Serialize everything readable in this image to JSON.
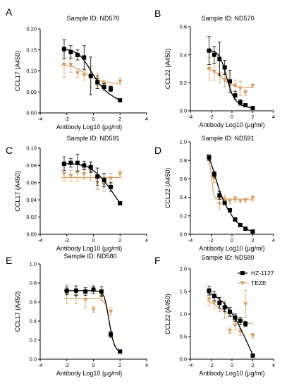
{
  "colors": {
    "hz": "#000000",
    "teze": "#D9A066"
  },
  "legend": {
    "items": [
      {
        "label": "HZ-1127",
        "color": "#000000",
        "marker": "square"
      },
      {
        "label": "TEZE",
        "color": "#D9A066",
        "marker": "triangle-down"
      }
    ]
  },
  "chart_data": [
    {
      "letter": "A",
      "title": "Sample ID: ND570",
      "type": "scatter",
      "xlabel": "Antibody Log10 (μg/ml)",
      "ylabel": "CCL17 (A450)",
      "xlim": [
        -4,
        4
      ],
      "ylim": [
        0,
        0.2
      ],
      "xticks": [
        -4,
        -2,
        0,
        2,
        4
      ],
      "yticks": [
        0.0,
        0.05,
        0.1,
        0.15,
        0.2
      ],
      "xtick_labels": [
        "-4",
        "-2",
        "0",
        "2",
        "4"
      ],
      "ytick_labels": [
        "0.00",
        "0.05",
        "0.10",
        "0.15",
        "0.20"
      ],
      "series": [
        {
          "color": "#000000",
          "marker": "square",
          "x": [
            -2.2,
            -1.7,
            -1.2,
            -0.7,
            -0.2,
            0.3,
            0.8,
            1.3,
            2.0
          ],
          "y": [
            0.152,
            0.145,
            0.138,
            0.132,
            0.088,
            0.073,
            0.062,
            0.057,
            0.03
          ],
          "err": [
            0.022,
            0.015,
            0.012,
            0.028,
            0.045,
            0.015,
            0.008,
            0.006,
            0.003
          ],
          "fit_x": [
            -2.4,
            -1.8,
            -1.2,
            -0.8,
            -0.4,
            0.0,
            0.4,
            0.8,
            1.2,
            1.6,
            2.0
          ],
          "fit_y": [
            0.152,
            0.15,
            0.142,
            0.13,
            0.111,
            0.09,
            0.071,
            0.056,
            0.045,
            0.037,
            0.03
          ]
        },
        {
          "color": "#D9A066",
          "marker": "triangle-down",
          "x": [
            -2.2,
            -1.7,
            -1.2,
            -0.7,
            -0.2,
            0.3,
            0.8,
            1.3,
            2.0
          ],
          "y": [
            0.115,
            0.115,
            0.095,
            0.09,
            0.085,
            0.08,
            0.07,
            0.06,
            0.075
          ],
          "err": [
            0.03,
            0.018,
            0.01,
            0.012,
            0.025,
            0.015,
            0.008,
            0.006,
            0.008
          ],
          "fit_x": [
            -2.4,
            -1.5,
            -1.0,
            -0.5,
            0.0,
            0.5,
            1.0,
            1.5,
            2.0
          ],
          "fit_y": [
            0.115,
            0.11,
            0.102,
            0.092,
            0.083,
            0.077,
            0.073,
            0.071,
            0.07
          ]
        }
      ]
    },
    {
      "letter": "B",
      "title": "Sample ID: ND570",
      "type": "scatter",
      "xlabel": "Antibody Log10 (μg/ml)",
      "ylabel": "CCL22 (A450)",
      "xlim": [
        -4,
        4
      ],
      "ylim": [
        0,
        0.6
      ],
      "xticks": [
        -4,
        -2,
        0,
        2,
        4
      ],
      "yticks": [
        0.0,
        0.2,
        0.4,
        0.6
      ],
      "xtick_labels": [
        "-4",
        "-2",
        "0",
        "2",
        "4"
      ],
      "ytick_labels": [
        "0.0",
        "0.2",
        "0.4",
        "0.6"
      ],
      "series": [
        {
          "color": "#000000",
          "marker": "square",
          "x": [
            -2.2,
            -1.7,
            -1.2,
            -0.7,
            -0.2,
            0.3,
            0.8,
            1.3,
            2.0
          ],
          "y": [
            0.43,
            0.4,
            0.37,
            0.31,
            0.21,
            0.11,
            0.06,
            0.04,
            0.02
          ],
          "err": [
            0.1,
            0.06,
            0.12,
            0.05,
            0.08,
            0.03,
            0.02,
            0.01,
            0.01
          ],
          "fit_x": [
            -2.4,
            -2.0,
            -1.6,
            -1.2,
            -0.8,
            -0.4,
            0.0,
            0.4,
            0.8,
            1.2,
            1.6,
            2.0
          ],
          "fit_y": [
            0.43,
            0.43,
            0.42,
            0.39,
            0.32,
            0.21,
            0.12,
            0.07,
            0.045,
            0.032,
            0.025,
            0.02
          ]
        },
        {
          "color": "#D9A066",
          "marker": "triangle-down",
          "x": [
            -2.2,
            -1.7,
            -1.2,
            -0.7,
            -0.2,
            0.3,
            0.8,
            1.3,
            2.0
          ],
          "y": [
            0.3,
            0.28,
            0.26,
            0.22,
            0.21,
            0.18,
            0.16,
            0.13,
            0.18
          ],
          "err": [
            0.08,
            0.06,
            0.06,
            0.05,
            0.06,
            0.04,
            0.05,
            0.02,
            0.01
          ],
          "fit_x": [
            -2.4,
            -2.0,
            -1.5,
            -1.0,
            -0.5,
            0.0,
            0.5,
            1.0,
            1.5,
            2.0
          ],
          "fit_y": [
            0.3,
            0.29,
            0.27,
            0.24,
            0.205,
            0.182,
            0.172,
            0.168,
            0.166,
            0.165
          ]
        }
      ]
    },
    {
      "letter": "C",
      "title": "Sample ID: ND591",
      "type": "scatter",
      "xlabel": "Antibody Log10 (μg/ml)",
      "ylabel": "CCL17 (A450)",
      "xlim": [
        -4,
        4
      ],
      "ylim": [
        0,
        0.1
      ],
      "xticks": [
        -4,
        -2,
        0,
        2,
        4
      ],
      "yticks": [
        0.0,
        0.02,
        0.04,
        0.06,
        0.08,
        0.1
      ],
      "xtick_labels": [
        "-4",
        "-2",
        "0",
        "2",
        "4"
      ],
      "ytick_labels": [
        "0.00",
        "0.02",
        "0.04",
        "0.06",
        "0.08",
        "0.10"
      ],
      "series": [
        {
          "color": "#000000",
          "marker": "square",
          "x": [
            -2.2,
            -1.7,
            -1.2,
            -0.7,
            -0.2,
            0.3,
            0.8,
            1.3,
            2.0
          ],
          "y": [
            0.082,
            0.083,
            0.083,
            0.08,
            0.078,
            0.067,
            0.063,
            0.055,
            0.036
          ],
          "err": [
            0.008,
            0.005,
            0.01,
            0.005,
            0.006,
            0.01,
            0.008,
            0.005,
            0.002
          ],
          "fit_x": [
            -2.4,
            -1.6,
            -0.8,
            -0.4,
            0.0,
            0.4,
            0.8,
            1.2,
            1.6,
            2.0
          ],
          "fit_y": [
            0.082,
            0.082,
            0.08,
            0.078,
            0.074,
            0.069,
            0.062,
            0.054,
            0.045,
            0.036
          ]
        },
        {
          "color": "#D9A066",
          "marker": "triangle-down",
          "x": [
            -2.2,
            -1.7,
            -1.2,
            -0.7,
            -0.2,
            0.3,
            0.8,
            1.3,
            2.0
          ],
          "y": [
            0.07,
            0.068,
            0.072,
            0.07,
            0.073,
            0.06,
            0.058,
            0.065,
            0.07
          ],
          "err": [
            0.008,
            0.006,
            0.01,
            0.006,
            0.01,
            0.008,
            0.008,
            0.006,
            0.004
          ],
          "fit_x": [
            -2.4,
            2.0
          ],
          "fit_y": [
            0.066,
            0.066
          ]
        }
      ]
    },
    {
      "letter": "D",
      "title": "Sample ID: ND591",
      "type": "scatter",
      "xlabel": "Antibody Log10 (μg/ml)",
      "ylabel": "CCL22 (A450)",
      "xlim": [
        -4,
        4
      ],
      "ylim": [
        0,
        1.0
      ],
      "xticks": [
        -4,
        -2,
        0,
        2,
        4
      ],
      "yticks": [
        0.0,
        0.2,
        0.4,
        0.6,
        0.8,
        1.0
      ],
      "xtick_labels": [
        "-4",
        "-2",
        "0",
        "2",
        "4"
      ],
      "ytick_labels": [
        "0.0",
        "0.2",
        "0.4",
        "0.6",
        "0.8",
        "1.0"
      ],
      "series": [
        {
          "color": "#000000",
          "marker": "square",
          "x": [
            -2.2,
            -1.7,
            -1.2,
            -0.7,
            -0.2,
            0.3,
            0.8,
            1.3,
            2.0
          ],
          "y": [
            0.83,
            0.65,
            0.42,
            0.34,
            0.26,
            0.16,
            0.1,
            0.06,
            0.03
          ],
          "err": [
            0.03,
            0.03,
            0.04,
            0.02,
            0.02,
            0.02,
            0.01,
            0.01,
            0.01
          ],
          "fit_x": [
            -2.4,
            -2.0,
            -1.6,
            -1.2,
            -0.8,
            -0.4,
            0.0,
            0.4,
            0.8,
            1.2,
            1.6,
            2.0
          ],
          "fit_y": [
            0.86,
            0.77,
            0.62,
            0.47,
            0.36,
            0.27,
            0.2,
            0.14,
            0.1,
            0.07,
            0.045,
            0.03
          ]
        },
        {
          "color": "#D9A066",
          "marker": "triangle-down",
          "x": [
            -2.2,
            -1.7,
            -1.2,
            -0.7,
            -0.2,
            0.3,
            0.8,
            1.3,
            2.0
          ],
          "y": [
            0.81,
            0.6,
            0.33,
            0.38,
            0.36,
            0.38,
            0.36,
            0.37,
            0.39
          ],
          "err": [
            0.04,
            0.04,
            0.06,
            0.04,
            0.03,
            0.03,
            0.02,
            0.02,
            0.03
          ],
          "fit_x": [
            -2.4,
            -2.2,
            -2.0,
            -1.8,
            -1.6,
            -1.4,
            -1.0,
            0.0,
            1.0,
            2.0
          ],
          "fit_y": [
            0.84,
            0.8,
            0.65,
            0.45,
            0.39,
            0.38,
            0.375,
            0.375,
            0.375,
            0.375
          ]
        }
      ]
    },
    {
      "letter": "E",
      "title": "Sample ID: ND580",
      "type": "scatter",
      "xlabel": "Antibody Log10 (μg/ml)",
      "ylabel": "CCL17 (A450)",
      "xlim": [
        -4,
        4
      ],
      "ylim": [
        0,
        1.0
      ],
      "xticks": [
        -4,
        -2,
        0,
        2,
        4
      ],
      "yticks": [
        0.0,
        0.2,
        0.4,
        0.6,
        0.8,
        1.0
      ],
      "xtick_labels": [
        "-4",
        "-2",
        "0",
        "2",
        "4"
      ],
      "ytick_labels": [
        "0.0",
        "0.2",
        "0.4",
        "0.6",
        "0.8",
        "1.0"
      ],
      "series": [
        {
          "color": "#000000",
          "marker": "square",
          "x": [
            -2.0,
            -1.3,
            -0.6,
            0.0,
            0.6,
            1.3,
            2.0
          ],
          "y": [
            0.72,
            0.72,
            0.71,
            0.73,
            0.71,
            0.26,
            0.08
          ],
          "err": [
            0.04,
            0.05,
            0.04,
            0.04,
            0.05,
            0.03,
            0.01
          ],
          "fit_x": [
            -2.2,
            -1.0,
            0.0,
            0.5,
            0.8,
            1.0,
            1.2,
            1.4,
            1.6,
            1.8,
            2.0
          ],
          "fit_y": [
            0.72,
            0.72,
            0.72,
            0.71,
            0.66,
            0.55,
            0.38,
            0.23,
            0.14,
            0.1,
            0.08
          ]
        },
        {
          "color": "#D9A066",
          "marker": "triangle-down",
          "x": [
            -2.0,
            -1.3,
            -0.6,
            0.0,
            0.6,
            1.3,
            2.0
          ],
          "y": [
            0.68,
            0.66,
            0.62,
            0.52,
            0.66,
            0.5,
            0.08
          ],
          "err": [
            0.1,
            0.08,
            0.08,
            0.03,
            0.05,
            0.04,
            0.01
          ],
          "fit_x": [
            -2.2,
            -1.0,
            0.0,
            0.6,
            0.9,
            1.1,
            1.3,
            1.5,
            1.7,
            2.0
          ],
          "fit_y": [
            0.64,
            0.64,
            0.64,
            0.63,
            0.58,
            0.47,
            0.32,
            0.19,
            0.12,
            0.08
          ]
        }
      ]
    },
    {
      "letter": "F",
      "title": "Sample ID: ND580",
      "type": "scatter",
      "xlabel": "Antibody Log10 (μg/ml)",
      "ylabel": "CCL22 (A450)",
      "xlim": [
        -4,
        4
      ],
      "ylim": [
        0,
        2.0
      ],
      "xticks": [
        -4,
        -2,
        0,
        2,
        4
      ],
      "yticks": [
        0.0,
        0.5,
        1.0,
        1.5,
        2.0
      ],
      "xtick_labels": [
        "-4",
        "-2",
        "0",
        "2",
        "4"
      ],
      "ytick_labels": [
        "0.0",
        "0.5",
        "1.0",
        "1.5",
        "2.0"
      ],
      "legend": true,
      "series": [
        {
          "name": "HZ-1127",
          "color": "#000000",
          "marker": "square",
          "x": [
            -2.2,
            -1.7,
            -1.2,
            -0.7,
            -0.2,
            0.3,
            0.8,
            1.3,
            2.0
          ],
          "y": [
            1.52,
            1.4,
            1.25,
            1.15,
            1.05,
            0.92,
            0.85,
            0.78,
            0.08
          ],
          "err": [
            0.1,
            0.1,
            0.12,
            0.1,
            0.1,
            0.08,
            0.08,
            0.06,
            0.02
          ],
          "fit_x": [
            -2.4,
            -1.6,
            -0.8,
            0.0,
            0.6,
            1.2,
            1.6,
            2.0
          ],
          "fit_y": [
            1.48,
            1.4,
            1.25,
            1.02,
            0.78,
            0.5,
            0.3,
            0.1
          ]
        },
        {
          "name": "TEZE",
          "color": "#D9A066",
          "marker": "triangle-down",
          "x": [
            -2.2,
            -1.7,
            -1.2,
            -0.7,
            -0.2,
            0.3,
            0.8,
            1.3,
            2.0
          ],
          "y": [
            1.33,
            1.25,
            1.2,
            1.1,
            0.63,
            0.75,
            0.6,
            1.22,
            0.52
          ],
          "err": [
            0.15,
            0.12,
            0.15,
            0.2,
            0.06,
            0.1,
            0.08,
            0.3,
            0.05
          ],
          "fit_x": [
            -2.4,
            -1.6,
            -0.8,
            0.0,
            0.8,
            1.6,
            2.0
          ],
          "fit_y": [
            1.3,
            1.2,
            1.07,
            0.95,
            0.87,
            0.8,
            0.78
          ]
        }
      ]
    }
  ]
}
